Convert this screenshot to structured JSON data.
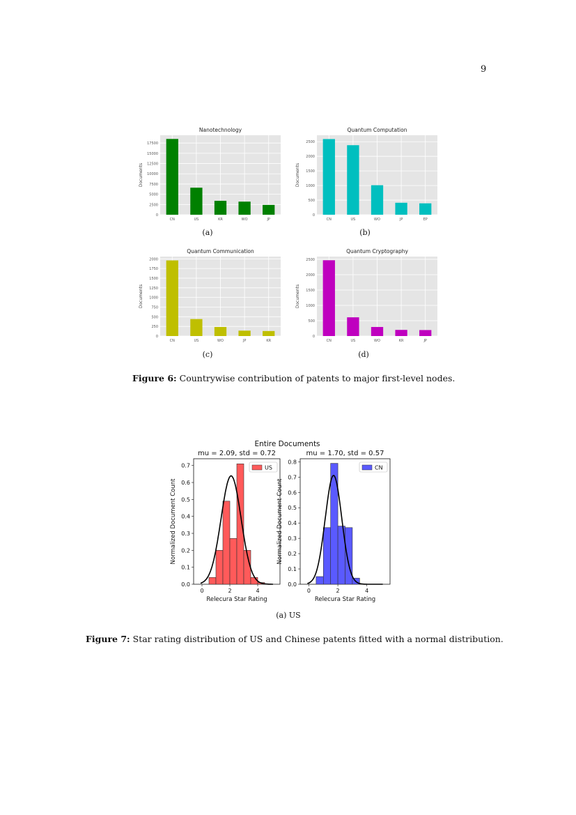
{
  "page_number": "9",
  "figure6": {
    "label": "Figure 6:",
    "text": "Countrywise contribution of patents to major first-level nodes.",
    "subcaptions": [
      "(a)",
      "(b)",
      "(c)",
      "(d)"
    ]
  },
  "figure7": {
    "label": "Figure 7:",
    "text": "Star rating distribution of US and Chinese patents fitted with a normal distribution.",
    "subcaption": "(a) US",
    "suptitle": "Entire Documents"
  },
  "colors": {
    "green": "#008000",
    "cyan": "#00bfbf",
    "olive": "#bfbf00",
    "magenta": "#bf00bf",
    "hist_red": "#ff5a5a",
    "hist_blue": "#5a5aff"
  },
  "chart_data": [
    {
      "type": "bar",
      "title": "Nanotechnology",
      "ylabel": "Documents",
      "categories": [
        "CN",
        "US",
        "KR",
        "WO",
        "JP"
      ],
      "values": [
        18500,
        6600,
        3400,
        3200,
        2400
      ],
      "yticks": [
        "0",
        "2500",
        "5000",
        "7500",
        "10000",
        "12500",
        "15000",
        "17500"
      ],
      "ylim": [
        0,
        19400
      ],
      "grid": true,
      "color": "#008000"
    },
    {
      "type": "bar",
      "title": "Quantum Computation",
      "ylabel": "Documents",
      "categories": [
        "CN",
        "US",
        "WO",
        "JP",
        "EP"
      ],
      "values": [
        2590,
        2380,
        1010,
        410,
        390
      ],
      "yticks": [
        "0",
        "500",
        "1000",
        "1500",
        "2000",
        "2500"
      ],
      "ylim": [
        0,
        2720
      ],
      "grid": true,
      "color": "#00bfbf"
    },
    {
      "type": "bar",
      "title": "Quantum Communication",
      "ylabel": "Documents",
      "categories": [
        "CN",
        "US",
        "WO",
        "JP",
        "KR"
      ],
      "values": [
        1960,
        440,
        235,
        140,
        130
      ],
      "yticks": [
        "0",
        "250",
        "500",
        "750",
        "1000",
        "1250",
        "1500",
        "1750",
        "2000"
      ],
      "ylim": [
        0,
        2060
      ],
      "grid": true,
      "color": "#bfbf00"
    },
    {
      "type": "bar",
      "title": "Quantum Cryptography",
      "ylabel": "Documents",
      "categories": [
        "CN",
        "US",
        "WO",
        "KR",
        "JP"
      ],
      "values": [
        2470,
        610,
        295,
        200,
        195
      ],
      "yticks": [
        "0",
        "500",
        "1000",
        "1500",
        "2000",
        "2500"
      ],
      "ylim": [
        0,
        2590
      ],
      "grid": true,
      "color": "#bf00bf"
    },
    {
      "type": "bar",
      "title": "mu = 2.09,  std = 0.72",
      "xlabel": "Relecura Star Rating",
      "ylabel": "Normalized Document Count",
      "legend": "US",
      "legend_position": "top-right",
      "bin_edges": [
        0.5,
        1.0,
        1.5,
        2.0,
        2.5,
        3.0,
        3.5,
        4.0,
        4.5,
        5.0
      ],
      "values": [
        0.04,
        0.2,
        0.49,
        0.27,
        0.71,
        0.2,
        0.04,
        0.01,
        0.0
      ],
      "fit": {
        "mu": 2.09,
        "std": 0.72
      },
      "xticks": [
        "0",
        "2",
        "4"
      ],
      "yticks": [
        "0.0",
        "0.1",
        "0.2",
        "0.3",
        "0.4",
        "0.5",
        "0.6",
        "0.7"
      ],
      "xlim": [
        -0.6,
        5.6
      ],
      "ylim": [
        0,
        0.74
      ],
      "color": "#ff5a5a"
    },
    {
      "type": "bar",
      "title": "mu = 1.70,  std = 0.57",
      "xlabel": "Relecura Star Rating",
      "ylabel": "Normalized Document Count",
      "legend": "CN",
      "legend_position": "top-right",
      "bin_edges": [
        0.5,
        1.0,
        1.5,
        2.0,
        2.5,
        3.0,
        3.5,
        4.0,
        4.5,
        5.0
      ],
      "values": [
        0.05,
        0.37,
        0.79,
        0.38,
        0.37,
        0.04,
        0.0,
        0.0,
        0.0
      ],
      "fit": {
        "mu": 1.7,
        "std": 0.57
      },
      "xticks": [
        "0",
        "2",
        "4"
      ],
      "yticks": [
        "0.0",
        "0.1",
        "0.2",
        "0.3",
        "0.4",
        "0.5",
        "0.6",
        "0.7",
        "0.8"
      ],
      "xlim": [
        -0.6,
        5.6
      ],
      "ylim": [
        0,
        0.82
      ],
      "color": "#5a5aff"
    }
  ]
}
